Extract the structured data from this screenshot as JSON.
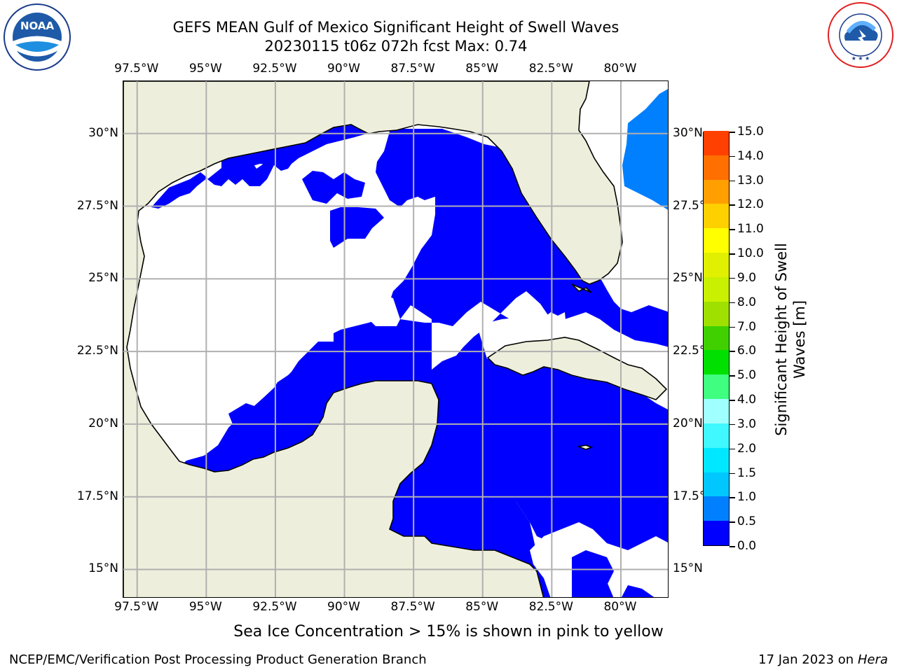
{
  "header": {
    "title_line1": "GEFS MEAN Gulf of Mexico Significant Height of Swell Waves",
    "title_line2": "20230115 t06z 072h fcst   Max: 0.74"
  },
  "logos": {
    "left": "NOAA",
    "left_ring_text": "NATIONAL OCEANIC AND ATMOSPHERIC ADMINISTRATION · U.S. DEPARTMENT OF COMMERCE",
    "right_ring_text": "NATIONAL WEATHER SERVICE"
  },
  "map": {
    "lon_ticks": [
      "97.5°W",
      "95°W",
      "92.5°W",
      "90°W",
      "87.5°W",
      "85°W",
      "82.5°W",
      "80°W"
    ],
    "lon_values": [
      -97.5,
      -95,
      -92.5,
      -90,
      -87.5,
      -85,
      -82.5,
      -80
    ],
    "lat_ticks": [
      "30°N",
      "27.5°N",
      "25°N",
      "22.5°N",
      "20°N",
      "17.5°N",
      "15°N"
    ],
    "lat_values": [
      30,
      27.5,
      25,
      22.5,
      20,
      17.5,
      15
    ],
    "lon_range": [
      -98.0,
      -78.25
    ],
    "lat_range": [
      14.0,
      31.8
    ],
    "colors": {
      "land": "#eeeedc",
      "swell_0_05": "#0000ff",
      "swell_05_10": "#0080ff",
      "grid": "#b0b0b0"
    }
  },
  "colorbar": {
    "label_line1": "Significant Height of Swell",
    "label_line2": "Waves [m]",
    "tick_labels": [
      "0.0",
      "0.5",
      "1.0",
      "1.5",
      "2.0",
      "3.0",
      "4.0",
      "5.0",
      "6.0",
      "7.0",
      "8.0",
      "9.0",
      "10.0",
      "11.0",
      "12.0",
      "13.0",
      "14.0",
      "15.0"
    ],
    "band_colors": [
      "#0000ff",
      "#0080ff",
      "#00c8ff",
      "#00e8ff",
      "#40f8ff",
      "#a0ffff",
      "#40ff80",
      "#00e000",
      "#40d000",
      "#a0e000",
      "#c8f000",
      "#e0f000",
      "#ffff00",
      "#ffd000",
      "#ffa000",
      "#ff7000",
      "#ff4000",
      "#ff0000"
    ]
  },
  "footer": {
    "ice_note": "Sea Ice Concentration > 15% is shown in pink to yellow",
    "credit": "NCEP/EMC/Verification Post Processing Product Generation Branch",
    "date": "17 Jan 2023 on",
    "machine": "Hera"
  }
}
